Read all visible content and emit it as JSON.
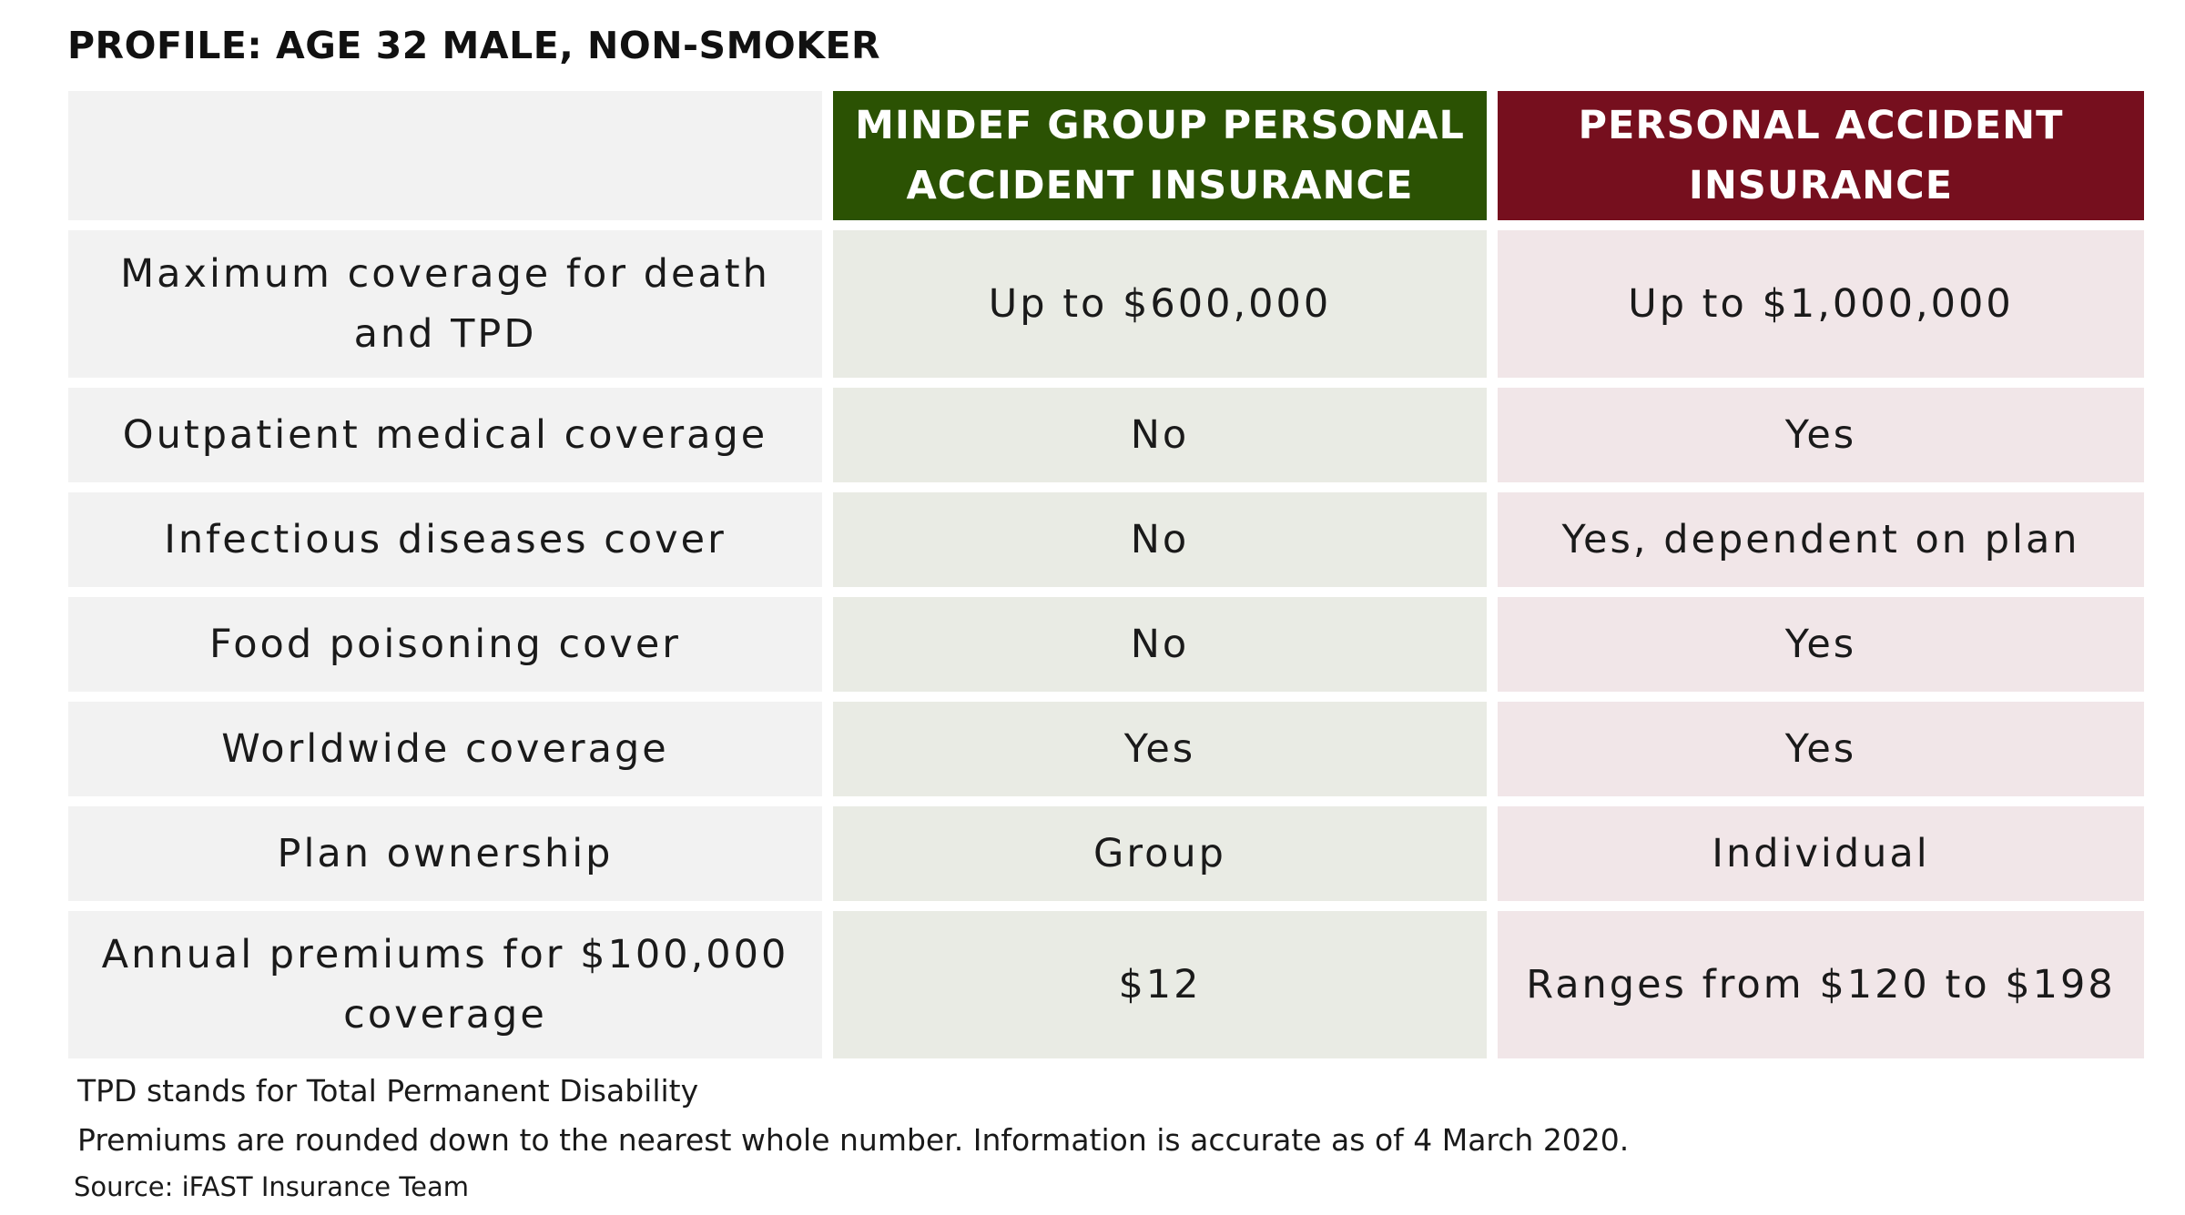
{
  "title": "PROFILE: AGE 32 MALE, NON-SMOKER",
  "table": {
    "headers": {
      "mindef": "MINDEF GROUP PERSONAL ACCIDENT INSURANCE",
      "personal": "PERSONAL ACCIDENT INSURANCE"
    },
    "rows": [
      {
        "label": "Maximum coverage for death and TPD",
        "mindef": "Up to $600,000",
        "personal": "Up to $1,000,000"
      },
      {
        "label": "Outpatient medical coverage",
        "mindef": "No",
        "personal": "Yes"
      },
      {
        "label": "Infectious diseases cover",
        "mindef": "No",
        "personal": "Yes, dependent on plan"
      },
      {
        "label": "Food poisoning cover",
        "mindef": "No",
        "personal": "Yes"
      },
      {
        "label": "Worldwide coverage",
        "mindef": "Yes",
        "personal": "Yes"
      },
      {
        "label": "Plan ownership",
        "mindef": "Group",
        "personal": "Individual"
      },
      {
        "label": "Annual premiums for $100,000 coverage",
        "mindef": "$12",
        "personal": "Ranges from $120 to $198"
      }
    ]
  },
  "notes": [
    "TPD stands for Total Permanent Disability",
    "Premiums are rounded down to the nearest whole number. Information is accurate as of 4 March 2020."
  ],
  "source": "Source: iFAST Insurance Team",
  "colors": {
    "mindef_header": "#2b5203",
    "personal_header": "#760f1e",
    "label_cell": "#f2f2f2",
    "mindef_cell": "#e9ebe4",
    "personal_cell": "#f1e6e8"
  }
}
